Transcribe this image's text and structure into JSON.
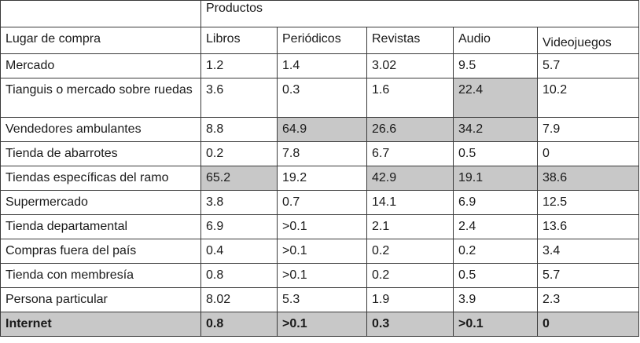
{
  "table": {
    "products_label": "Productos",
    "header": {
      "place": "Lugar de compra",
      "columns": [
        "Libros",
        "Periódicos",
        "Revistas",
        "Audio",
        "Videojuegos"
      ]
    },
    "highlight_color": "#c8c8c8",
    "rows": [
      {
        "label": "Mercado",
        "values": [
          "1.2",
          "1.4",
          "3.02",
          "9.5",
          "5.7"
        ],
        "highlight": [
          false,
          false,
          false,
          false,
          false
        ]
      },
      {
        "label": "Tianguis o mercado sobre ruedas",
        "values": [
          "3.6",
          "0.3",
          "1.6",
          "22.4",
          "10.2"
        ],
        "highlight": [
          false,
          false,
          false,
          true,
          false
        ]
      },
      {
        "label": "Vendedores ambulantes",
        "values": [
          "8.8",
          "64.9",
          "26.6",
          "34.2",
          "7.9"
        ],
        "highlight": [
          false,
          true,
          true,
          true,
          false
        ]
      },
      {
        "label": "Tienda de abarrotes",
        "values": [
          "0.2",
          "7.8",
          "6.7",
          "0.5",
          "0"
        ],
        "highlight": [
          false,
          false,
          false,
          false,
          false
        ]
      },
      {
        "label": "Tiendas específicas del ramo",
        "values": [
          "65.2",
          "19.2",
          "42.9",
          "19.1",
          "38.6"
        ],
        "highlight": [
          true,
          false,
          true,
          true,
          true
        ]
      },
      {
        "label": "Supermercado",
        "values": [
          "3.8",
          "0.7",
          "14.1",
          "6.9",
          "12.5"
        ],
        "highlight": [
          false,
          false,
          false,
          false,
          false
        ]
      },
      {
        "label": "Tienda departamental",
        "values": [
          "6.9",
          ">0.1",
          "2.1",
          "2.4",
          "13.6"
        ],
        "highlight": [
          false,
          false,
          false,
          false,
          false
        ]
      },
      {
        "label": "Compras fuera del país",
        "values": [
          "0.4",
          ">0.1",
          "0.2",
          "0.2",
          "3.4"
        ],
        "highlight": [
          false,
          false,
          false,
          false,
          false
        ]
      },
      {
        "label": "Tienda con membresía",
        "values": [
          "0.8",
          ">0.1",
          "0.2",
          "0.5",
          "5.7"
        ],
        "highlight": [
          false,
          false,
          false,
          false,
          false
        ]
      },
      {
        "label": "Persona particular",
        "values": [
          "8.02",
          "5.3",
          "1.9",
          "3.9",
          "2.3"
        ],
        "highlight": [
          false,
          false,
          false,
          false,
          false
        ]
      },
      {
        "label": "Internet",
        "values": [
          "0.8",
          ">0.1",
          "0.3",
          ">0.1",
          "0"
        ],
        "highlight": [
          true,
          true,
          true,
          true,
          true
        ],
        "row_highlight": true,
        "bold": true
      }
    ]
  }
}
